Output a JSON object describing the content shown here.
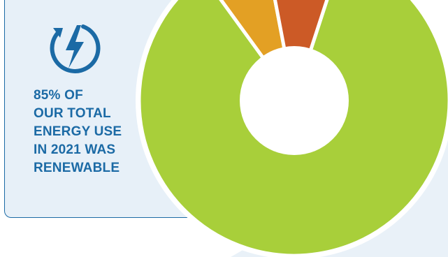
{
  "headline_lines": [
    "85% OF",
    "OUR TOTAL",
    "ENERGY USE",
    "IN 2021 WAS",
    "RENEWABLE"
  ],
  "icon": "lightning-bolt-renewable-icon",
  "colors": {
    "accent_blue": "#1b6aa5",
    "card_bg": "#e7f0f8",
    "page_bg_light": "#e9f1f8"
  },
  "chart_data": {
    "type": "pie",
    "variant": "donut",
    "title": "",
    "slices": [
      {
        "label": "",
        "value": 85,
        "color": "#a8cf3a"
      },
      {
        "label": "",
        "value": 7,
        "color": "#e3a024"
      },
      {
        "label": "",
        "value": 8,
        "color": "#cc5a26"
      }
    ]
  }
}
